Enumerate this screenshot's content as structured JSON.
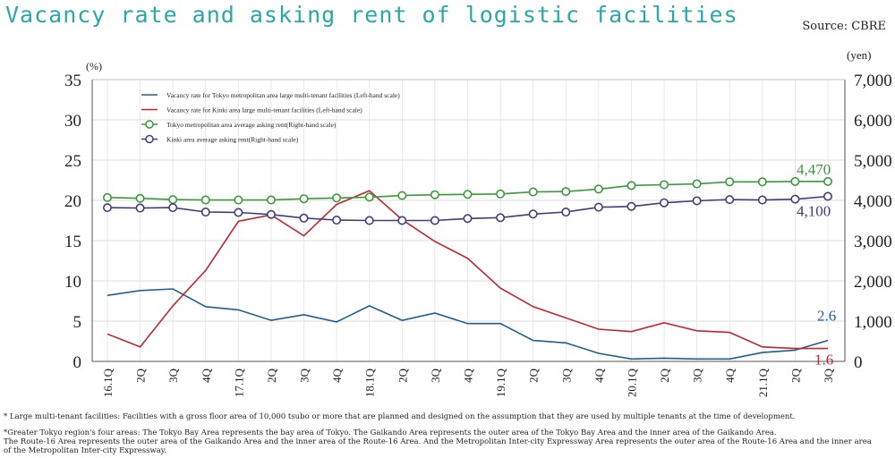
{
  "title": "Vacancy rate and asking rent of logistic facilities",
  "source": "Source: CBRE",
  "notes": {
    "note1": "* Large multi-tenant facilities: Facilities with a gross floor area of 10,000 tsubo or more that are planned and designed on the assumption that they are used by multiple tenants at the time of development.",
    "note2": "*Greater Tokyo region's four areas: The Tokyo Bay Area represents the bay area of Tokyo. The Gaikando Area represents the outer area of the Tokyo Bay Area and the inner area of the Gaikando Area.",
    "note3": "The Route-16 Area represents the outer area of the Gaikando Area and the inner area of the Route-16 Area. And the Metropolitan Inter-city Expressway Area represents the outer area of the Route-16 Area and the inner area",
    "note4": " of the Metropolitan Inter-city Expressway."
  },
  "chart_data": {
    "type": "line",
    "categories": [
      "16.1Q",
      "2Q",
      "3Q",
      "4Q",
      "17.1Q",
      "2Q",
      "3Q",
      "4Q",
      "18.1Q",
      "2Q",
      "3Q",
      "4Q",
      "19.1Q",
      "2Q",
      "3Q",
      "4Q",
      "20.1Q",
      "2Q",
      "3Q",
      "4Q",
      "21.1Q",
      "2Q",
      "3Q"
    ],
    "left_axis": {
      "unit": "(%)",
      "ylim": [
        0,
        35
      ],
      "ticks": [
        "0",
        "5",
        "10",
        "15",
        "20",
        "25",
        "30",
        "35"
      ]
    },
    "right_axis": {
      "unit": "(yen)",
      "ylim": [
        0,
        7000
      ],
      "ticks": [
        "0",
        "1,000",
        "2,000",
        "3,000",
        "4,000",
        "5,000",
        "6,000",
        "7,000"
      ]
    },
    "grid": true,
    "legend_position": "top-left",
    "series": [
      {
        "name": "Vacancy rate for Tokyo metropolitan area large multi-tenant facilities (Left-hand scale)",
        "axis": "left",
        "color": "#1f5f8f",
        "marker": false,
        "values": [
          8.2,
          8.8,
          9.0,
          6.8,
          6.4,
          5.1,
          5.8,
          4.9,
          6.9,
          5.1,
          6.0,
          4.7,
          4.7,
          2.6,
          2.3,
          1.0,
          0.3,
          0.4,
          0.3,
          0.3,
          1.1,
          1.4,
          2.6
        ]
      },
      {
        "name": "Vacancy rate for Kinki area large multi-tenant facilities (Left-hand scale)",
        "axis": "left",
        "color": "#c0262d",
        "marker": false,
        "values": [
          3.4,
          1.8,
          6.9,
          11.3,
          17.4,
          18.2,
          15.6,
          19.5,
          21.2,
          17.6,
          14.9,
          12.8,
          9.1,
          6.8,
          5.4,
          4.0,
          3.7,
          4.8,
          3.8,
          3.6,
          1.8,
          1.6,
          1.6
        ]
      },
      {
        "name": "Tokyo metropolitan area average asking rent(Right-hand scale)",
        "axis": "right",
        "color": "#3a9a3a",
        "marker": true,
        "values": [
          4070,
          4050,
          4020,
          4010,
          4010,
          4010,
          4040,
          4060,
          4080,
          4120,
          4140,
          4150,
          4160,
          4210,
          4220,
          4280,
          4370,
          4390,
          4410,
          4460,
          4460,
          4470,
          4470
        ]
      },
      {
        "name": "Kinki area average asking rent(Right-hand scale)",
        "axis": "right",
        "color": "#3f3d7a",
        "marker": true,
        "values": [
          3820,
          3810,
          3820,
          3710,
          3700,
          3650,
          3560,
          3510,
          3500,
          3500,
          3500,
          3550,
          3570,
          3660,
          3710,
          3830,
          3850,
          3940,
          3990,
          4020,
          4010,
          4030,
          4100
        ]
      }
    ],
    "end_labels": [
      {
        "text": "2.6",
        "series": 0,
        "color": "#1f5f8f"
      },
      {
        "text": "1.6",
        "series": 1,
        "color": "#c0262d"
      },
      {
        "text": "4,470",
        "series": 2,
        "color": "#3a9a3a"
      },
      {
        "text": "4,100",
        "series": 3,
        "color": "#3f3d7a"
      }
    ]
  }
}
